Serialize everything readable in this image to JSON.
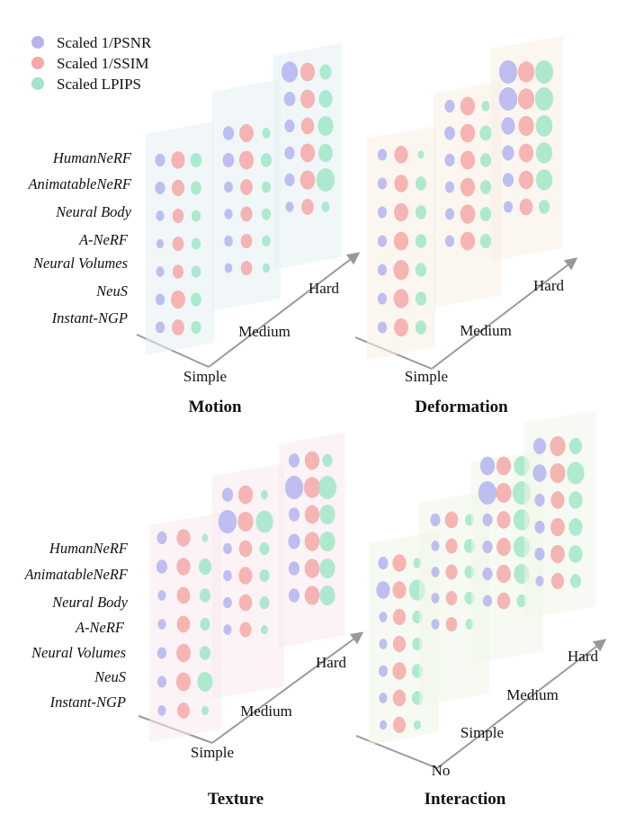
{
  "legend": {
    "items": [
      {
        "label": "Scaled 1/PSNR",
        "color": "#b4b4f0"
      },
      {
        "label": "Scaled 1/SSIM",
        "color": "#f4a8a8"
      },
      {
        "label": "Scaled LPIPS",
        "color": "#a0e6c8"
      }
    ]
  },
  "methods": [
    "HumanNeRF",
    "AnimatableNeRF",
    "Neural Body",
    "A-NeRF",
    "Neural Volumes",
    "NeuS",
    "Instant-NGP"
  ],
  "chart_data": [
    {
      "type": "bubble-3d",
      "title": "Motion",
      "levels": [
        "Simple",
        "Medium",
        "Hard"
      ],
      "panel_tint": "#e6f0f2",
      "values": [
        [
          [
            0.55,
            0.75,
            0.62
          ],
          [
            0.55,
            0.7,
            0.58
          ],
          [
            0.45,
            0.62,
            0.5
          ],
          [
            0.4,
            0.62,
            0.5
          ],
          [
            0.45,
            0.6,
            0.52
          ],
          [
            0.5,
            0.78,
            0.58
          ],
          [
            0.5,
            0.68,
            0.55
          ]
        ],
        [
          [
            0.6,
            0.78,
            0.45
          ],
          [
            0.62,
            0.8,
            0.6
          ],
          [
            0.48,
            0.68,
            0.5
          ],
          [
            0.45,
            0.65,
            0.5
          ],
          [
            0.48,
            0.62,
            0.48
          ],
          [
            0.42,
            0.62,
            0.4
          ],
          [
            0.0,
            0.0,
            0.0
          ]
        ],
        [
          [
            0.9,
            0.8,
            0.65
          ],
          [
            0.62,
            0.8,
            0.75
          ],
          [
            0.55,
            0.72,
            0.85
          ],
          [
            0.55,
            0.8,
            0.78
          ],
          [
            0.55,
            0.82,
            1.0
          ],
          [
            0.45,
            0.68,
            0.45
          ],
          [
            0.0,
            0.0,
            0.0
          ]
        ]
      ]
    },
    {
      "type": "bubble-3d",
      "title": "Deformation",
      "levels": [
        "Simple",
        "Medium",
        "Hard"
      ],
      "panel_tint": "#f8eee4",
      "values": [
        [
          [
            0.5,
            0.75,
            0.35
          ],
          [
            0.5,
            0.75,
            0.6
          ],
          [
            0.5,
            0.78,
            0.6
          ],
          [
            0.5,
            0.8,
            0.6
          ],
          [
            0.5,
            0.85,
            0.6
          ],
          [
            0.5,
            0.82,
            0.6
          ],
          [
            0.5,
            0.78,
            0.6
          ]
        ],
        [
          [
            0.55,
            0.8,
            0.45
          ],
          [
            0.58,
            0.8,
            0.65
          ],
          [
            0.55,
            0.8,
            0.6
          ],
          [
            0.5,
            0.8,
            0.6
          ],
          [
            0.5,
            0.82,
            0.62
          ],
          [
            0.5,
            0.8,
            0.62
          ],
          [
            0.0,
            0.0,
            0.0
          ]
        ],
        [
          [
            1.0,
            0.9,
            1.0
          ],
          [
            1.0,
            0.9,
            1.0
          ],
          [
            0.75,
            0.85,
            0.92
          ],
          [
            0.65,
            0.8,
            0.9
          ],
          [
            0.6,
            0.8,
            0.9
          ],
          [
            0.5,
            0.72,
            0.6
          ],
          [
            0.0,
            0.0,
            0.0
          ]
        ]
      ]
    },
    {
      "type": "bubble-3d",
      "title": "Texture",
      "levels": [
        "Simple",
        "Medium",
        "Hard"
      ],
      "panel_tint": "#f8eaee",
      "values": [
        [
          [
            0.55,
            0.75,
            0.35
          ],
          [
            0.6,
            0.75,
            0.7
          ],
          [
            0.45,
            0.72,
            0.6
          ],
          [
            0.45,
            0.72,
            0.55
          ],
          [
            0.5,
            0.78,
            0.6
          ],
          [
            0.5,
            0.8,
            0.85
          ],
          [
            0.45,
            0.68,
            0.4
          ]
        ],
        [
          [
            0.6,
            0.8,
            0.4
          ],
          [
            1.0,
            0.85,
            0.95
          ],
          [
            0.48,
            0.72,
            0.55
          ],
          [
            0.48,
            0.75,
            0.55
          ],
          [
            0.48,
            0.72,
            0.55
          ],
          [
            0.45,
            0.65,
            0.4
          ],
          [
            0.0,
            0.0,
            0.0
          ]
        ],
        [
          [
            0.6,
            0.8,
            0.55
          ],
          [
            1.0,
            0.9,
            1.0
          ],
          [
            0.6,
            0.8,
            0.85
          ],
          [
            0.65,
            0.82,
            0.85
          ],
          [
            0.6,
            0.82,
            0.85
          ],
          [
            0.6,
            0.82,
            0.85
          ],
          [
            0.0,
            0.0,
            0.0
          ]
        ]
      ]
    },
    {
      "type": "bubble-3d",
      "title": "Interaction",
      "levels": [
        "No",
        "Simple",
        "Medium",
        "Hard"
      ],
      "panel_tint": "#f0f6e8",
      "values": [
        [
          [
            0.55,
            0.75,
            0.45
          ],
          [
            0.75,
            0.75,
            0.9
          ],
          [
            0.45,
            0.7,
            0.55
          ],
          [
            0.45,
            0.7,
            0.55
          ],
          [
            0.5,
            0.75,
            0.6
          ],
          [
            0.45,
            0.72,
            0.6
          ],
          [
            0.4,
            0.7,
            0.4
          ]
        ],
        [
          [
            0.55,
            0.72,
            0.5
          ],
          [
            0.45,
            0.65,
            0.6
          ],
          [
            0.45,
            0.65,
            0.55
          ],
          [
            0.45,
            0.62,
            0.55
          ],
          [
            0.45,
            0.62,
            0.45
          ],
          [
            0.0,
            0.0,
            0.0
          ],
          [
            0.0,
            0.0,
            0.0
          ]
        ],
        [
          [
            0.8,
            0.8,
            0.85
          ],
          [
            1.0,
            0.85,
            1.0
          ],
          [
            0.55,
            0.75,
            0.9
          ],
          [
            0.55,
            0.78,
            0.9
          ],
          [
            0.55,
            0.78,
            0.85
          ],
          [
            0.5,
            0.72,
            0.55
          ],
          [
            0.0,
            0.0,
            0.0
          ]
        ],
        [
          [
            0.7,
            0.85,
            0.7
          ],
          [
            0.75,
            0.85,
            0.95
          ],
          [
            0.55,
            0.75,
            0.75
          ],
          [
            0.55,
            0.78,
            0.75
          ],
          [
            0.55,
            0.78,
            0.75
          ],
          [
            0.45,
            0.7,
            0.6
          ],
          [
            0.0,
            0.0,
            0.0
          ]
        ]
      ]
    }
  ]
}
